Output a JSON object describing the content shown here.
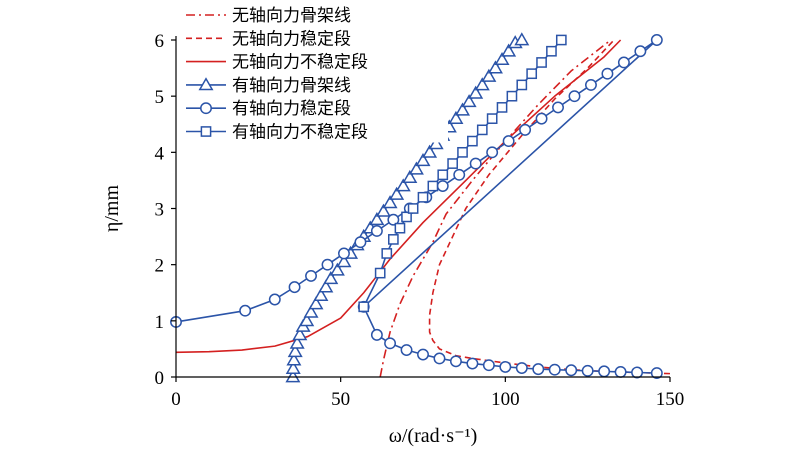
{
  "chart_data": {
    "type": "line",
    "xlabel": "ω/(rad·s⁻¹)",
    "ylabel": "η/mm",
    "xlim": [
      0,
      150
    ],
    "ylim": [
      0,
      6
    ],
    "xticks": [
      "0",
      "50",
      "100",
      "150"
    ],
    "yticks": [
      "0",
      "1",
      "2",
      "3",
      "4",
      "5",
      "6"
    ],
    "grid": false,
    "legend_position": "top-left",
    "series": [
      {
        "name": "无轴向力骨架线",
        "color": "#d42020",
        "line": "dashdot",
        "marker": "none",
        "points": [
          [
            62,
            0
          ],
          [
            63,
            0.3
          ],
          [
            65,
            0.8
          ],
          [
            68,
            1.3
          ],
          [
            72,
            1.8
          ],
          [
            75,
            2.1
          ],
          [
            78,
            2.4
          ],
          [
            82,
            2.9
          ],
          [
            90,
            3.5
          ],
          [
            100,
            4.2
          ],
          [
            110,
            4.85
          ],
          [
            120,
            5.45
          ],
          [
            132,
            6.0
          ]
        ]
      },
      {
        "name": "无轴向力稳定段",
        "color": "#d42020",
        "line": "dashed",
        "marker": "none",
        "points": [
          [
            150,
            0.06
          ],
          [
            140,
            0.08
          ],
          [
            130,
            0.1
          ],
          [
            120,
            0.13
          ],
          [
            110,
            0.18
          ],
          [
            100,
            0.25
          ],
          [
            90,
            0.33
          ],
          [
            85,
            0.38
          ],
          [
            80,
            0.5
          ],
          [
            78,
            0.65
          ],
          [
            77,
            0.8
          ],
          [
            77,
            1.1
          ],
          [
            78,
            1.5
          ],
          [
            80,
            2.0
          ],
          [
            84,
            2.5
          ],
          [
            88,
            3.0
          ],
          [
            95,
            3.6
          ],
          [
            105,
            4.3
          ],
          [
            115,
            4.95
          ],
          [
            125,
            5.5
          ],
          [
            133,
            6.0
          ]
        ]
      },
      {
        "name": "无轴向力不稳定段",
        "color": "#d42020",
        "line": "solid",
        "marker": "none",
        "points": [
          [
            0,
            0.44
          ],
          [
            10,
            0.45
          ],
          [
            20,
            0.48
          ],
          [
            30,
            0.55
          ],
          [
            40,
            0.72
          ],
          [
            50,
            1.05
          ],
          [
            57,
            1.5
          ],
          [
            65,
            2.1
          ],
          [
            75,
            2.75
          ],
          [
            88,
            3.5
          ],
          [
            100,
            4.2
          ],
          [
            115,
            5.0
          ],
          [
            130,
            5.7
          ],
          [
            135,
            6.0
          ]
        ]
      },
      {
        "name": "有轴向力骨架线",
        "color": "#2b54a8",
        "line": "solid",
        "marker": "triangle",
        "points": [
          [
            35.5,
            0
          ],
          [
            35.6,
            0.15
          ],
          [
            35.8,
            0.3
          ],
          [
            36.2,
            0.45
          ],
          [
            36.8,
            0.6
          ],
          [
            37.6,
            0.75
          ],
          [
            38.6,
            0.9
          ],
          [
            39.7,
            1.0
          ],
          [
            41,
            1.15
          ],
          [
            42.5,
            1.3
          ],
          [
            44,
            1.45
          ],
          [
            45.5,
            1.6
          ],
          [
            47,
            1.75
          ],
          [
            49,
            1.9
          ],
          [
            51,
            2.05
          ],
          [
            53,
            2.2
          ],
          [
            55,
            2.35
          ],
          [
            57,
            2.5
          ],
          [
            59,
            2.65
          ],
          [
            61,
            2.8
          ],
          [
            63,
            2.95
          ],
          [
            65,
            3.1
          ],
          [
            67,
            3.25
          ],
          [
            69,
            3.4
          ],
          [
            71,
            3.55
          ],
          [
            73,
            3.7
          ],
          [
            75,
            3.85
          ],
          [
            77,
            4.0
          ],
          [
            79,
            4.15
          ],
          [
            81,
            4.3
          ],
          [
            83,
            4.45
          ],
          [
            85,
            4.6
          ],
          [
            87,
            4.75
          ],
          [
            89,
            4.9
          ],
          [
            91,
            5.05
          ],
          [
            93,
            5.2
          ],
          [
            95,
            5.35
          ],
          [
            97,
            5.5
          ],
          [
            99,
            5.65
          ],
          [
            101,
            5.8
          ],
          [
            103,
            5.95
          ],
          [
            105,
            6.0
          ]
        ]
      },
      {
        "name": "有轴向力稳定段",
        "color": "#2b54a8",
        "line": "solid",
        "marker": "circle",
        "points": [
          [
            0,
            0.98
          ],
          [
            21,
            1.18
          ],
          [
            30,
            1.38
          ],
          [
            36,
            1.6
          ],
          [
            41,
            1.8
          ],
          [
            46,
            2.0
          ],
          [
            51,
            2.2
          ],
          [
            56,
            2.4
          ],
          [
            61,
            2.6
          ],
          [
            66,
            2.8
          ],
          [
            71,
            3.0
          ],
          [
            76,
            3.2
          ],
          [
            81,
            3.4
          ],
          [
            86,
            3.6
          ],
          [
            91,
            3.8
          ],
          [
            96,
            4.0
          ],
          [
            101,
            4.2
          ],
          [
            106,
            4.4
          ],
          [
            111,
            4.6
          ],
          [
            116,
            4.8
          ],
          [
            121,
            5.0
          ],
          [
            126,
            5.2
          ],
          [
            131,
            5.4
          ],
          [
            136,
            5.6
          ],
          [
            141,
            5.8
          ],
          [
            146,
            6.0
          ],
          [
            57,
            1.25
          ],
          [
            61,
            0.75
          ],
          [
            65,
            0.6
          ],
          [
            70,
            0.48
          ],
          [
            75,
            0.4
          ],
          [
            80,
            0.33
          ],
          [
            85,
            0.28
          ],
          [
            90,
            0.24
          ],
          [
            95,
            0.21
          ],
          [
            100,
            0.18
          ],
          [
            105,
            0.16
          ],
          [
            110,
            0.14
          ],
          [
            115,
            0.13
          ],
          [
            120,
            0.12
          ],
          [
            125,
            0.11
          ],
          [
            130,
            0.1
          ],
          [
            135,
            0.09
          ],
          [
            140,
            0.08
          ],
          [
            146,
            0.07
          ]
        ]
      },
      {
        "name": "有轴向力不稳定段",
        "color": "#2b54a8",
        "line": "solid",
        "marker": "square",
        "points": [
          [
            57,
            1.25
          ],
          [
            62,
            1.85
          ],
          [
            64,
            2.2
          ],
          [
            66,
            2.45
          ],
          [
            68,
            2.65
          ],
          [
            70,
            2.85
          ],
          [
            72,
            3.0
          ],
          [
            75,
            3.2
          ],
          [
            78,
            3.4
          ],
          [
            81,
            3.6
          ],
          [
            84,
            3.8
          ],
          [
            87,
            4.0
          ],
          [
            90,
            4.2
          ],
          [
            93,
            4.4
          ],
          [
            96,
            4.6
          ],
          [
            99,
            4.8
          ],
          [
            102,
            5.0
          ],
          [
            105,
            5.2
          ],
          [
            108,
            5.4
          ],
          [
            111,
            5.6
          ],
          [
            114,
            5.8
          ],
          [
            117,
            6.0
          ]
        ]
      }
    ]
  }
}
